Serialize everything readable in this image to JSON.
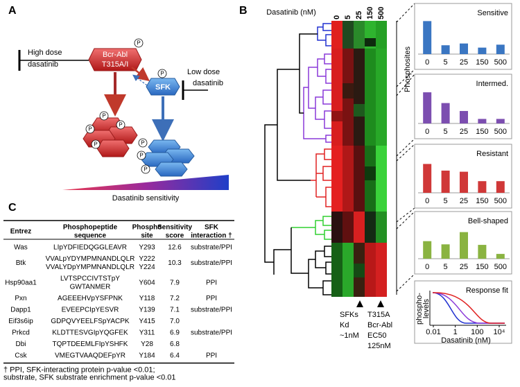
{
  "panels": {
    "a": "A",
    "b": "B",
    "c": "C"
  },
  "diagram": {
    "high_dose": [
      "High dose",
      "dasatinib"
    ],
    "bcr_abl": [
      "Bcr-Abl",
      "T315A/I"
    ],
    "sfk": "SFK",
    "low_dose": [
      "Low dose",
      "dasatinib"
    ],
    "phospho": "P",
    "gradient_label": "Dasatinib sensitivity"
  },
  "heatmap": {
    "axis_title": "Dasatinib (nM)",
    "doses": [
      "0",
      "5",
      "25",
      "150",
      "500"
    ],
    "row_label": "Phosphosites",
    "marker_1": [
      "SFKs",
      "Kd",
      "~1nM"
    ],
    "marker_2": [
      "T315A",
      "Bcr-Abl",
      "EC50",
      "125nM"
    ]
  },
  "chart_data": [
    {
      "type": "bar",
      "title": "Sensitive",
      "categories": [
        "0",
        "5",
        "25",
        "150",
        "500"
      ],
      "values": [
        56,
        15,
        18,
        11,
        16
      ],
      "color": "#3a76c2",
      "ylim": [
        0,
        60
      ]
    },
    {
      "type": "bar",
      "title": "Intermed.",
      "categories": [
        "0",
        "5",
        "25",
        "150",
        "500"
      ],
      "values": [
        55,
        36,
        22,
        8,
        8
      ],
      "color": "#7c4eb0",
      "ylim": [
        0,
        60
      ]
    },
    {
      "type": "bar",
      "title": "Resistant",
      "categories": [
        "0",
        "5",
        "25",
        "150",
        "500"
      ],
      "values": [
        52,
        40,
        38,
        21,
        21
      ],
      "color": "#d03838",
      "ylim": [
        0,
        60
      ]
    },
    {
      "type": "bar",
      "title": "Bell-shaped",
      "categories": [
        "0",
        "5",
        "25",
        "150",
        "500"
      ],
      "values": [
        33,
        27,
        50,
        26,
        9
      ],
      "color": "#8ab341",
      "ylim": [
        0,
        60
      ]
    },
    {
      "type": "line",
      "title": "Response fit",
      "ylabel": [
        "phospho-",
        "levels"
      ],
      "xlabel": "Dasatinib (nM)",
      "xscale": "log",
      "xlim": [
        0.01,
        10000
      ],
      "xticks": [
        0.01,
        1,
        100,
        {
          "value": 10000,
          "label": "10⁴"
        }
      ]
    }
  ],
  "table": {
    "header": [
      [
        "Entrez"
      ],
      [
        "Phosphopeptide",
        "sequence"
      ],
      [
        "Phospho",
        "site"
      ],
      [
        "Sensitivity",
        "score"
      ],
      [
        "SFK",
        "interaction †"
      ]
    ],
    "rows": [
      {
        "entrez": "Was",
        "sequence": [
          "LIpYDFIEDQGGLEAVR"
        ],
        "site": [
          "Y293"
        ],
        "score": "12.6",
        "interaction": "substrate/PPI"
      },
      {
        "entrez": "Btk",
        "sequence": [
          "VVALpYDYMPMNANDLQLR",
          "VVALYDpYMPMNANDLQLR"
        ],
        "site": [
          "Y222",
          "Y224"
        ],
        "score": "10.3",
        "interaction": "substrate/PPI"
      },
      {
        "entrez": "Hsp90aa1",
        "sequence": [
          "LVTSPCCIVTSTpY",
          "GWTANMER"
        ],
        "site": [
          "Y604"
        ],
        "score": "7.9",
        "interaction": "PPI"
      },
      {
        "entrez": "Pxn",
        "sequence": [
          "AGEEEHVpYSFPNK"
        ],
        "site": [
          "Y118"
        ],
        "score": "7.2",
        "interaction": "PPI"
      },
      {
        "entrez": "Dapp1",
        "sequence": [
          "EVEEPCIpYESVR"
        ],
        "site": [
          "Y139"
        ],
        "score": "7.1",
        "interaction": "substrate/PPI"
      },
      {
        "entrez": "Eif3s6ip",
        "sequence": [
          "GDPQVYEELFSpYACPK"
        ],
        "site": [
          "Y415"
        ],
        "score": "7.0"
      },
      {
        "entrez": "Prkcd",
        "sequence": [
          "KLDTTESVGIpYQGFEK"
        ],
        "site": [
          "Y311"
        ],
        "score": "6.9",
        "interaction": "substrate/PPI"
      },
      {
        "entrez": "Dbi",
        "sequence": [
          "TQPTDEEMLFIpYSHFK"
        ],
        "site": [
          "Y28"
        ],
        "score": "6.8"
      },
      {
        "entrez": "Csk",
        "sequence": [
          "VMEGTVAAQDEFpYR"
        ],
        "site": [
          "Y184"
        ],
        "score": "6.4",
        "interaction": "PPI"
      }
    ],
    "footnote": [
      "† PPI, SFK-interacting protein p-value <0.01;",
      "substrate, SFK substrate enrichment p-value <0.01"
    ]
  }
}
